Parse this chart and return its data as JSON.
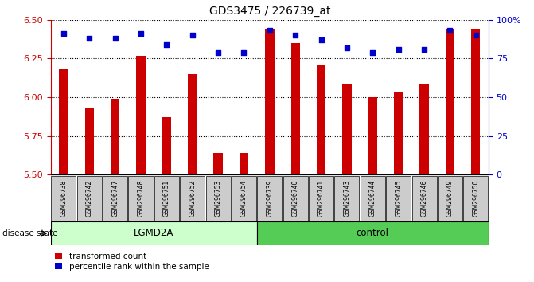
{
  "title": "GDS3475 / 226739_at",
  "samples": [
    "GSM296738",
    "GSM296742",
    "GSM296747",
    "GSM296748",
    "GSM296751",
    "GSM296752",
    "GSM296753",
    "GSM296754",
    "GSM296739",
    "GSM296740",
    "GSM296741",
    "GSM296743",
    "GSM296744",
    "GSM296745",
    "GSM296746",
    "GSM296749",
    "GSM296750"
  ],
  "bar_values": [
    6.18,
    5.93,
    5.99,
    6.27,
    5.87,
    6.15,
    5.64,
    5.64,
    6.44,
    6.35,
    6.21,
    6.09,
    6.0,
    6.03,
    6.09,
    6.44,
    6.44
  ],
  "pct_values": [
    91,
    88,
    88,
    91,
    84,
    90,
    79,
    79,
    93,
    90,
    87,
    82,
    79,
    81,
    81,
    93,
    90
  ],
  "group_labels": [
    "LGMD2A",
    "control"
  ],
  "group_counts": [
    8,
    9
  ],
  "ylim_left": [
    5.5,
    6.5
  ],
  "ylim_right": [
    0,
    100
  ],
  "yticks_left": [
    5.5,
    5.75,
    6.0,
    6.25,
    6.5
  ],
  "yticks_right": [
    0,
    25,
    50,
    75,
    100
  ],
  "bar_color": "#cc0000",
  "dot_color": "#0000cc",
  "lgmd2a_color": "#ccffcc",
  "control_color": "#55cc55",
  "tick_label_bg": "#cccccc",
  "grid_color": "#000000",
  "legend_items": [
    "transformed count",
    "percentile rank within the sample"
  ],
  "disease_state_label": "disease state"
}
